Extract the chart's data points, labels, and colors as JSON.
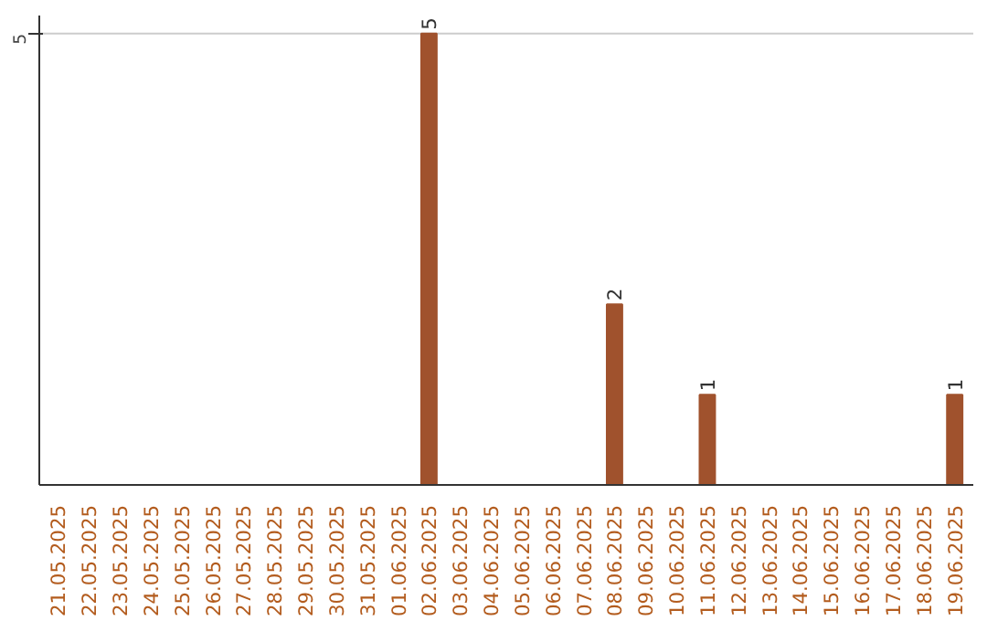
{
  "chart_data": {
    "type": "bar",
    "categories": [
      "21.05.2025",
      "22.05.2025",
      "23.05.2025",
      "24.05.2025",
      "25.05.2025",
      "26.05.2025",
      "27.05.2025",
      "28.05.2025",
      "29.05.2025",
      "30.05.2025",
      "31.05.2025",
      "01.06.2025",
      "02.06.2025",
      "03.06.2025",
      "04.06.2025",
      "05.06.2025",
      "06.06.2025",
      "07.06.2025",
      "08.06.2025",
      "09.06.2025",
      "10.06.2025",
      "11.06.2025",
      "12.06.2025",
      "13.06.2025",
      "14.06.2025",
      "15.06.2025",
      "16.06.2025",
      "17.06.2025",
      "18.06.2025",
      "19.06.2025"
    ],
    "values": [
      null,
      null,
      null,
      null,
      null,
      null,
      null,
      null,
      null,
      null,
      null,
      null,
      5,
      null,
      null,
      null,
      null,
      null,
      2,
      null,
      null,
      1,
      null,
      null,
      null,
      null,
      null,
      null,
      null,
      1
    ],
    "color": "#a0522d",
    "ylim": [
      0,
      5.2
    ],
    "ref_lines": [
      {
        "axis": "y",
        "value": 5,
        "label": "5",
        "color": "#cccccc"
      }
    ],
    "data_labels": true
  }
}
